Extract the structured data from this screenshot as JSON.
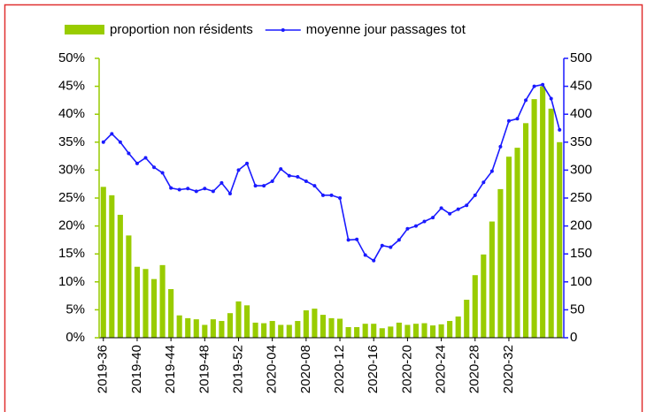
{
  "chart_data": {
    "type": "combo",
    "categories": [
      "2019-36",
      null,
      null,
      null,
      "2019-40",
      null,
      null,
      null,
      "2019-44",
      null,
      null,
      null,
      "2019-48",
      null,
      null,
      null,
      "2019-52",
      null,
      null,
      null,
      "2020-04",
      null,
      null,
      null,
      "2020-08",
      null,
      null,
      null,
      "2020-12",
      null,
      null,
      null,
      "2020-16",
      null,
      null,
      null,
      "2020-20",
      null,
      null,
      null,
      "2020-24",
      null,
      null,
      null,
      "2020-28",
      null,
      null,
      null,
      "2020-32",
      null,
      null,
      null,
      null,
      null,
      null
    ],
    "series": [
      {
        "name": "proportion non résidents",
        "type": "bar",
        "color": "#99cc00",
        "values": [
          27,
          25.5,
          22,
          18.3,
          12.7,
          12.3,
          10.5,
          13,
          8.7,
          4,
          3.5,
          3.3,
          2.3,
          3.3,
          3,
          4.4,
          6.5,
          5.8,
          2.7,
          2.6,
          3,
          2.3,
          2.3,
          3,
          4.9,
          5.2,
          4.1,
          3.5,
          3.4,
          1.9,
          1.9,
          2.5,
          2.5,
          1.7,
          2.0,
          2.7,
          2.3,
          2.5,
          2.6,
          2.2,
          2.4,
          3.0,
          3.8,
          6.8,
          11.2,
          14.9,
          20.8,
          26.6,
          32.4,
          34,
          38.4,
          42.7,
          45,
          41,
          35
        ]
      },
      {
        "name": "moyenne jour passages tot",
        "type": "line",
        "color": "#1a1aff",
        "axis": "y2",
        "values": [
          350,
          365,
          350,
          330,
          312,
          322,
          305,
          295,
          268,
          265,
          267,
          262,
          267,
          262,
          277,
          258,
          300,
          312,
          272,
          272,
          280,
          302,
          290,
          288,
          280,
          272,
          255,
          255,
          250,
          175,
          176,
          148,
          138,
          165,
          162,
          175,
          195,
          200,
          208,
          215,
          232,
          222,
          230,
          237,
          255,
          278,
          298,
          342,
          388,
          392,
          425,
          450,
          453,
          428,
          372
        ]
      }
    ],
    "ylim": [
      0,
      50
    ],
    "yticks": [
      {
        "value": 0,
        "label": "0%"
      },
      {
        "value": 5,
        "label": "5%"
      },
      {
        "value": 10,
        "label": "10%"
      },
      {
        "value": 15,
        "label": "15%"
      },
      {
        "value": 20,
        "label": "20%"
      },
      {
        "value": 25,
        "label": "25%"
      },
      {
        "value": 30,
        "label": "30%"
      },
      {
        "value": 35,
        "label": "35%"
      },
      {
        "value": 40,
        "label": "40%"
      },
      {
        "value": 45,
        "label": "45%"
      },
      {
        "value": 50,
        "label": "50%"
      }
    ],
    "y2lim": [
      0,
      500
    ],
    "y2ticks": [
      0,
      50,
      100,
      150,
      200,
      250,
      300,
      350,
      400,
      450,
      500
    ],
    "legend": "top"
  }
}
